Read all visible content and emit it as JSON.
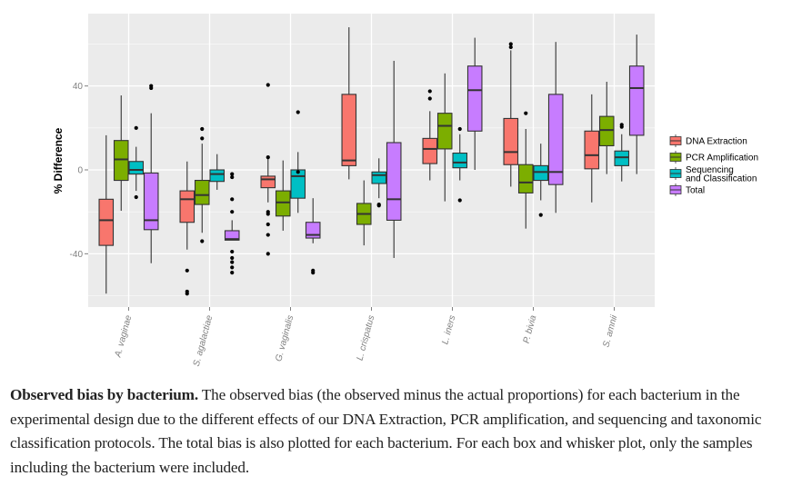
{
  "chart_data": {
    "type": "boxplot",
    "title": "",
    "xlabel": "",
    "ylabel": "% Difference",
    "ylim": [
      -65.4,
      74.5
    ],
    "yticks": [
      -40,
      0,
      40
    ],
    "ytick_labels": [
      "-40",
      "0",
      "40"
    ],
    "minor_yticks": [
      -60,
      -20,
      20,
      60
    ],
    "grid": true,
    "legend_position": "right",
    "categories": [
      "A. vaginae",
      "S. agalactiae",
      "G. vaginalis",
      "L. crispatus",
      "L. iners",
      "P. bivia",
      "S. amnii"
    ],
    "series": [
      {
        "name": "DNA Extraction",
        "color": "#F8766D",
        "boxes": [
          {
            "whisker_low": -59,
            "q1": -36,
            "median": -24,
            "q3": -14,
            "whisker_high": 16.5,
            "outliers": []
          },
          {
            "whisker_low": -38,
            "q1": -25,
            "median": -14,
            "q3": -10,
            "whisker_high": 4,
            "outliers": [
              -48,
              -58,
              -59
            ]
          },
          {
            "whisker_low": -15.5,
            "q1": -8.5,
            "median": -4.5,
            "q3": -3,
            "whisker_high": 6,
            "outliers": [
              40.5,
              6,
              -20,
              -21,
              -26,
              -31,
              -40
            ]
          },
          {
            "whisker_low": -4.5,
            "q1": 2,
            "median": 4.5,
            "q3": 36,
            "whisker_high": 68,
            "outliers": []
          },
          {
            "whisker_low": -5,
            "q1": 3,
            "median": 10,
            "q3": 15,
            "whisker_high": 28,
            "outliers": [
              37.5,
              34
            ]
          },
          {
            "whisker_low": -8,
            "q1": 2.5,
            "median": 8.5,
            "q3": 24.5,
            "whisker_high": 57,
            "outliers": [
              60,
              58.5
            ]
          },
          {
            "whisker_low": -15.5,
            "q1": 0.5,
            "median": 7,
            "q3": 18.5,
            "whisker_high": 36,
            "outliers": []
          }
        ]
      },
      {
        "name": "PCR Amplification",
        "color": "#7CAE00",
        "boxes": [
          {
            "whisker_low": -19.5,
            "q1": -5,
            "median": 5,
            "q3": 14,
            "whisker_high": 35.5,
            "outliers": []
          },
          {
            "whisker_low": -30,
            "q1": -16.5,
            "median": -12,
            "q3": -5,
            "whisker_high": 12.5,
            "outliers": [
              19.5,
              15,
              -34
            ]
          },
          {
            "whisker_low": -29,
            "q1": -22,
            "median": -15.5,
            "q3": -10,
            "whisker_high": 4.5,
            "outliers": []
          },
          {
            "whisker_low": -36,
            "q1": -26,
            "median": -21,
            "q3": -16,
            "whisker_high": -5,
            "outliers": []
          },
          {
            "whisker_low": -15,
            "q1": 10,
            "median": 21,
            "q3": 27,
            "whisker_high": 46,
            "outliers": []
          },
          {
            "whisker_low": -28,
            "q1": -11,
            "median": -6,
            "q3": 2.5,
            "whisker_high": 19.5,
            "outliers": [
              27
            ]
          },
          {
            "whisker_low": -2,
            "q1": 11.5,
            "median": 19,
            "q3": 25.5,
            "whisker_high": 42,
            "outliers": []
          }
        ]
      },
      {
        "name": "Sequencing and Classification",
        "color": "#00BFC4",
        "boxes": [
          {
            "whisker_low": -10,
            "q1": -2,
            "median": 0,
            "q3": 4,
            "whisker_high": 11,
            "outliers": [
              20,
              -13
            ]
          },
          {
            "whisker_low": -9.5,
            "q1": -5.5,
            "median": -2,
            "q3": 0,
            "whisker_high": 7.5,
            "outliers": []
          },
          {
            "whisker_low": -20.5,
            "q1": -13.5,
            "median": -3,
            "q3": 0,
            "whisker_high": 8.5,
            "outliers": [
              27.5,
              -1
            ]
          },
          {
            "whisker_low": -13.5,
            "q1": -6.5,
            "median": -2.5,
            "q3": -1,
            "whisker_high": 5.5,
            "outliers": [
              -16.5,
              -17
            ]
          },
          {
            "whisker_low": -5,
            "q1": 1,
            "median": 3.5,
            "q3": 8,
            "whisker_high": 17,
            "outliers": [
              19.5,
              -14.5
            ]
          },
          {
            "whisker_low": -14.5,
            "q1": -5,
            "median": -1,
            "q3": 2,
            "whisker_high": 12.5,
            "outliers": [
              -21.5
            ]
          },
          {
            "whisker_low": -5.5,
            "q1": 2,
            "median": 6,
            "q3": 9,
            "whisker_high": 17,
            "outliers": [
              21.5,
              20.5
            ]
          }
        ]
      },
      {
        "name": "Total",
        "color": "#C77CFF",
        "boxes": [
          {
            "whisker_low": -44.5,
            "q1": -28.5,
            "median": -24,
            "q3": -1.5,
            "whisker_high": 27,
            "outliers": [
              40,
              39
            ]
          },
          {
            "whisker_low": -33.5,
            "q1": -33.5,
            "median": -33,
            "q3": -29,
            "whisker_high": -24,
            "outliers": [
              -2,
              -3.5,
              -14,
              -20,
              -39,
              -42,
              -44,
              -46.5,
              -49
            ]
          },
          {
            "whisker_low": -35,
            "q1": -32.5,
            "median": -31,
            "q3": -25,
            "whisker_high": -13.5,
            "outliers": [
              -48,
              -49
            ]
          },
          {
            "whisker_low": -42,
            "q1": -24,
            "median": -14,
            "q3": 13,
            "whisker_high": 52,
            "outliers": []
          },
          {
            "whisker_low": 0,
            "q1": 18.5,
            "median": 38,
            "q3": 49.5,
            "whisker_high": 63,
            "outliers": []
          },
          {
            "whisker_low": -20.5,
            "q1": -7,
            "median": -1,
            "q3": 36,
            "whisker_high": 61,
            "outliers": []
          },
          {
            "whisker_low": -2,
            "q1": 16.5,
            "median": 39,
            "q3": 49.5,
            "whisker_high": 64.5,
            "outliers": []
          }
        ]
      }
    ],
    "legend_labels": [
      [
        "DNA Extraction"
      ],
      [
        "PCR Amplification"
      ],
      [
        "Sequencing",
        "and Classification"
      ],
      [
        "Total"
      ]
    ]
  },
  "style": {
    "panel_background": "#EBEBEB",
    "grid_color": "#FFFFFF",
    "box_outline": "#333333"
  },
  "caption": {
    "bold": "Observed bias by bacterium.",
    "text": " The observed bias (the observed minus the actual proportions) for each bacterium in the experimental design due to the different effects of our DNA Extraction, PCR amplification, and sequencing and taxonomic classification protocols. The total bias is also plotted for each bacterium. For each box and whisker plot, only the samples including the bacterium were included."
  }
}
